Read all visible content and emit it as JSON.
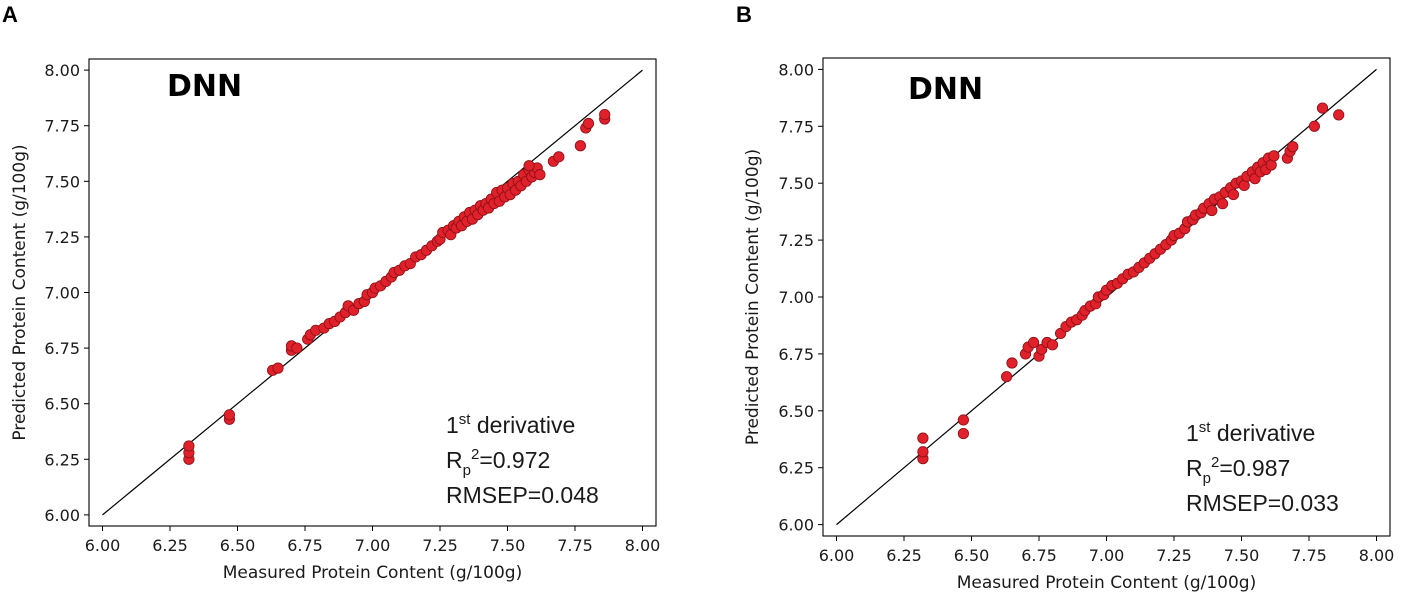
{
  "chart_data": [
    {
      "type": "scatter",
      "panel": "A",
      "title": "DNN",
      "xlabel": "Measured Protein Content (g/100g)",
      "ylabel": "Predicted Protein Content (g/100g)",
      "xlim": [
        5.95,
        8.05
      ],
      "ylim": [
        5.95,
        8.05
      ],
      "xticks": [
        "6.00",
        "6.25",
        "6.50",
        "6.75",
        "7.00",
        "7.25",
        "7.50",
        "7.75",
        "8.00"
      ],
      "yticks": [
        "6.00",
        "6.25",
        "6.50",
        "6.75",
        "7.00",
        "7.25",
        "7.50",
        "7.75",
        "8.00"
      ],
      "reference_line": [
        [
          6.0,
          6.0
        ],
        [
          8.0,
          8.0
        ]
      ],
      "point_color": "#e0202a",
      "annotation": {
        "line1_main": "1",
        "line1_sup": "st",
        "line1_rest": " derivative",
        "line2_main": "R",
        "line2_sub": "p",
        "line2_sup": "2",
        "line2_rest": "=0.972",
        "line3": "RMSEP=0.048"
      },
      "points": [
        [
          6.32,
          6.25
        ],
        [
          6.32,
          6.28
        ],
        [
          6.32,
          6.31
        ],
        [
          6.47,
          6.43
        ],
        [
          6.47,
          6.45
        ],
        [
          6.63,
          6.65
        ],
        [
          6.65,
          6.66
        ],
        [
          6.7,
          6.74
        ],
        [
          6.7,
          6.76
        ],
        [
          6.72,
          6.75
        ],
        [
          6.76,
          6.79
        ],
        [
          6.77,
          6.81
        ],
        [
          6.79,
          6.83
        ],
        [
          6.82,
          6.84
        ],
        [
          6.84,
          6.86
        ],
        [
          6.86,
          6.87
        ],
        [
          6.88,
          6.89
        ],
        [
          6.9,
          6.91
        ],
        [
          6.91,
          6.94
        ],
        [
          6.93,
          6.92
        ],
        [
          6.95,
          6.95
        ],
        [
          6.97,
          6.96
        ],
        [
          6.98,
          6.99
        ],
        [
          7.0,
          7.0
        ],
        [
          7.01,
          7.02
        ],
        [
          7.03,
          7.03
        ],
        [
          7.05,
          7.05
        ],
        [
          7.07,
          7.07
        ],
        [
          7.08,
          7.09
        ],
        [
          7.1,
          7.1
        ],
        [
          7.12,
          7.12
        ],
        [
          7.14,
          7.13
        ],
        [
          7.16,
          7.16
        ],
        [
          7.18,
          7.17
        ],
        [
          7.2,
          7.19
        ],
        [
          7.22,
          7.21
        ],
        [
          7.24,
          7.23
        ],
        [
          7.25,
          7.24
        ],
        [
          7.26,
          7.27
        ],
        [
          7.28,
          7.28
        ],
        [
          7.29,
          7.26
        ],
        [
          7.3,
          7.3
        ],
        [
          7.31,
          7.29
        ],
        [
          7.32,
          7.32
        ],
        [
          7.33,
          7.3
        ],
        [
          7.34,
          7.34
        ],
        [
          7.35,
          7.32
        ],
        [
          7.36,
          7.36
        ],
        [
          7.37,
          7.33
        ],
        [
          7.38,
          7.37
        ],
        [
          7.39,
          7.35
        ],
        [
          7.4,
          7.39
        ],
        [
          7.41,
          7.37
        ],
        [
          7.42,
          7.4
        ],
        [
          7.43,
          7.38
        ],
        [
          7.44,
          7.42
        ],
        [
          7.45,
          7.4
        ],
        [
          7.46,
          7.45
        ],
        [
          7.47,
          7.41
        ],
        [
          7.48,
          7.46
        ],
        [
          7.49,
          7.43
        ],
        [
          7.5,
          7.47
        ],
        [
          7.51,
          7.44
        ],
        [
          7.52,
          7.49
        ],
        [
          7.53,
          7.46
        ],
        [
          7.54,
          7.5
        ],
        [
          7.55,
          7.48
        ],
        [
          7.56,
          7.53
        ],
        [
          7.57,
          7.5
        ],
        [
          7.58,
          7.55
        ],
        [
          7.59,
          7.52
        ],
        [
          7.6,
          7.54
        ],
        [
          7.61,
          7.56
        ],
        [
          7.62,
          7.53
        ],
        [
          7.58,
          7.57
        ],
        [
          7.67,
          7.59
        ],
        [
          7.69,
          7.61
        ],
        [
          7.77,
          7.66
        ],
        [
          7.79,
          7.74
        ],
        [
          7.8,
          7.76
        ],
        [
          7.86,
          7.78
        ],
        [
          7.86,
          7.8
        ]
      ]
    },
    {
      "type": "scatter",
      "panel": "B",
      "title": "DNN",
      "xlabel": "Measured Protein Content (g/100g)",
      "ylabel": "Predicted Protein Content (g/100g)",
      "xlim": [
        5.95,
        8.05
      ],
      "ylim": [
        5.95,
        8.05
      ],
      "xticks": [
        "6.00",
        "6.25",
        "6.50",
        "6.75",
        "7.00",
        "7.25",
        "7.50",
        "7.75",
        "8.00"
      ],
      "yticks": [
        "6.00",
        "6.25",
        "6.50",
        "6.75",
        "7.00",
        "7.25",
        "7.50",
        "7.75",
        "8.00"
      ],
      "reference_line": [
        [
          6.0,
          6.0
        ],
        [
          8.0,
          8.0
        ]
      ],
      "point_color": "#e0202a",
      "annotation": {
        "line1_main": "1",
        "line1_sup": "st",
        "line1_rest": " derivative",
        "line2_main": "R",
        "line2_sub": "p",
        "line2_sup": "2",
        "line2_rest": "=0.987",
        "line3": "RMSEP=0.033"
      },
      "points": [
        [
          6.32,
          6.29
        ],
        [
          6.32,
          6.32
        ],
        [
          6.32,
          6.38
        ],
        [
          6.47,
          6.4
        ],
        [
          6.47,
          6.46
        ],
        [
          6.63,
          6.65
        ],
        [
          6.65,
          6.71
        ],
        [
          6.7,
          6.75
        ],
        [
          6.71,
          6.78
        ],
        [
          6.73,
          6.8
        ],
        [
          6.75,
          6.74
        ],
        [
          6.76,
          6.77
        ],
        [
          6.78,
          6.8
        ],
        [
          6.8,
          6.79
        ],
        [
          6.83,
          6.84
        ],
        [
          6.85,
          6.87
        ],
        [
          6.87,
          6.89
        ],
        [
          6.89,
          6.9
        ],
        [
          6.91,
          6.92
        ],
        [
          6.92,
          6.94
        ],
        [
          6.94,
          6.96
        ],
        [
          6.96,
          6.97
        ],
        [
          6.97,
          7.0
        ],
        [
          6.99,
          7.01
        ],
        [
          7.0,
          7.03
        ],
        [
          7.02,
          7.05
        ],
        [
          7.04,
          7.06
        ],
        [
          7.06,
          7.08
        ],
        [
          7.08,
          7.1
        ],
        [
          7.1,
          7.11
        ],
        [
          7.12,
          7.13
        ],
        [
          7.14,
          7.15
        ],
        [
          7.16,
          7.17
        ],
        [
          7.18,
          7.19
        ],
        [
          7.2,
          7.21
        ],
        [
          7.22,
          7.23
        ],
        [
          7.24,
          7.25
        ],
        [
          7.25,
          7.27
        ],
        [
          7.27,
          7.28
        ],
        [
          7.29,
          7.3
        ],
        [
          7.3,
          7.33
        ],
        [
          7.32,
          7.34
        ],
        [
          7.33,
          7.36
        ],
        [
          7.35,
          7.37
        ],
        [
          7.36,
          7.39
        ],
        [
          7.38,
          7.41
        ],
        [
          7.39,
          7.38
        ],
        [
          7.4,
          7.43
        ],
        [
          7.42,
          7.44
        ],
        [
          7.43,
          7.41
        ],
        [
          7.44,
          7.46
        ],
        [
          7.46,
          7.48
        ],
        [
          7.47,
          7.45
        ],
        [
          7.48,
          7.5
        ],
        [
          7.5,
          7.51
        ],
        [
          7.51,
          7.49
        ],
        [
          7.52,
          7.53
        ],
        [
          7.54,
          7.55
        ],
        [
          7.55,
          7.52
        ],
        [
          7.56,
          7.57
        ],
        [
          7.57,
          7.55
        ],
        [
          7.58,
          7.59
        ],
        [
          7.59,
          7.56
        ],
        [
          7.6,
          7.61
        ],
        [
          7.61,
          7.58
        ],
        [
          7.62,
          7.62
        ],
        [
          7.67,
          7.61
        ],
        [
          7.68,
          7.64
        ],
        [
          7.69,
          7.66
        ],
        [
          7.77,
          7.75
        ],
        [
          7.8,
          7.83
        ],
        [
          7.86,
          7.8
        ]
      ]
    }
  ]
}
